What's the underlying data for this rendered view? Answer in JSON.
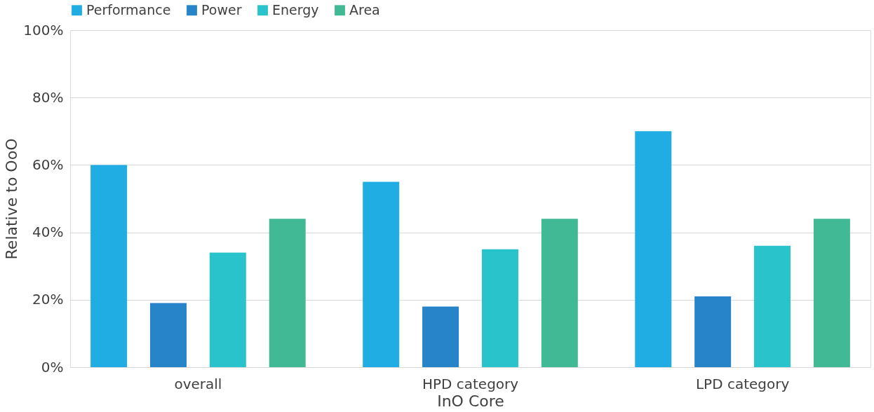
{
  "chart_data": {
    "type": "bar",
    "xlabel": "InO Core",
    "ylabel": "Relative to OoO",
    "categories": [
      "overall",
      "HPD category",
      "LPD category"
    ],
    "series": [
      {
        "name": "Performance",
        "color": "#1fade3",
        "values": [
          60,
          55,
          70
        ]
      },
      {
        "name": "Power",
        "color": "#2784c8",
        "values": [
          19,
          18,
          21
        ]
      },
      {
        "name": "Energy",
        "color": "#29c4cb",
        "values": [
          34,
          35,
          36
        ]
      },
      {
        "name": "Area",
        "color": "#41b994",
        "values": [
          44,
          44,
          44
        ]
      }
    ],
    "ylim": [
      0,
      100
    ],
    "yticks": [
      {
        "value": 0,
        "label": "0%"
      },
      {
        "value": 20,
        "label": "20%"
      },
      {
        "value": 40,
        "label": "40%"
      },
      {
        "value": 60,
        "label": "60%"
      },
      {
        "value": 80,
        "label": "80%"
      },
      {
        "value": 100,
        "label": "100%"
      }
    ],
    "grid": "y",
    "legend": "top"
  }
}
